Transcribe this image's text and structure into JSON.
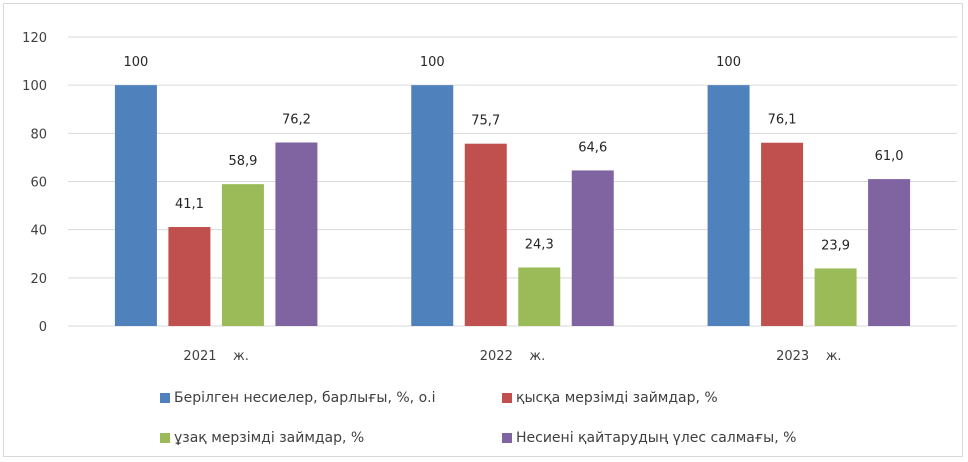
{
  "chart_data": {
    "type": "bar",
    "categories": [
      "2021    ж.",
      "2022    ж.",
      "2023    ж."
    ],
    "series": [
      {
        "name": "Берілген несиелер, барлығы, %, о.і",
        "color": "#4f81bd",
        "values": [
          100,
          100,
          100
        ],
        "labels": [
          "100",
          "100",
          "100"
        ]
      },
      {
        "name": "қысқа мерзімді займдар, %",
        "color": "#c0504d",
        "values": [
          41.1,
          75.7,
          76.1
        ],
        "labels": [
          "41,1",
          "75,7",
          "76,1"
        ]
      },
      {
        "name": "ұзақ мерзімді займдар, %",
        "color": "#9bbb59",
        "values": [
          58.9,
          24.3,
          23.9
        ],
        "labels": [
          "58,9",
          "24,3",
          "23,9"
        ]
      },
      {
        "name": "Несиені қайтарудың үлес салмағы, %",
        "color": "#8064a2",
        "values": [
          76.2,
          64.6,
          61.0
        ],
        "labels": [
          "76,2",
          "64,6",
          "61,0"
        ]
      }
    ],
    "yticks": [
      "0",
      "20",
      "40",
      "60",
      "80",
      "100",
      "120"
    ],
    "ylim": [
      0,
      120
    ],
    "grid": true,
    "legend_position": "bottom",
    "title": "",
    "xlabel": "",
    "ylabel": ""
  }
}
